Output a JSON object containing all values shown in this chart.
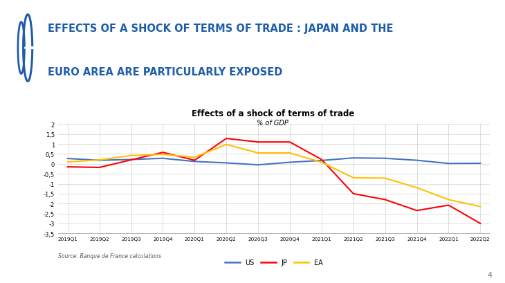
{
  "title": "Effects of a shock of terms of trade",
  "subtitle": "% of GDP",
  "header_line1": "EFFECTS OF A SHOCK OF TERMS OF TRADE : JAPAN AND THE",
  "header_line2": "EURO AREA ARE PARTICULARLY EXPOSED",
  "source": "Source: Banque de France calculations",
  "x_labels": [
    "2019Q1",
    "2019Q2",
    "2019Q3",
    "2019Q4",
    "2020Q1",
    "2020Q2",
    "2020Q3",
    "2020Q4",
    "2021Q1",
    "2021Q2",
    "2021Q3",
    "2021Q4",
    "2022Q1",
    "2022Q2"
  ],
  "US": [
    0.27,
    0.18,
    0.22,
    0.28,
    0.12,
    0.05,
    -0.05,
    0.08,
    0.17,
    0.3,
    0.28,
    0.18,
    0.02,
    0.03
  ],
  "JP": [
    -0.15,
    -0.18,
    0.2,
    0.58,
    0.18,
    1.28,
    1.1,
    1.1,
    0.22,
    -1.5,
    -1.8,
    -2.35,
    -2.08,
    -3.0
  ],
  "EA": [
    0.1,
    0.2,
    0.42,
    0.48,
    0.33,
    0.98,
    0.55,
    0.55,
    0.08,
    -0.7,
    -0.72,
    -1.2,
    -1.8,
    -2.15
  ],
  "colors": {
    "US": "#4472C4",
    "JP": "#FF0000",
    "EA": "#FFC000"
  },
  "ylim": [
    -3.5,
    2
  ],
  "yticks": [
    -3.5,
    -3,
    -2.5,
    -2,
    -1.5,
    -1,
    -0.5,
    0,
    0.5,
    1,
    1.5,
    2
  ],
  "ytick_labels": [
    "-3,5",
    "-3",
    "-2,5",
    "-2",
    "-1,5",
    "-1",
    "-0,5",
    "0",
    "0,5",
    "1",
    "1,5",
    "2"
  ],
  "header_color": "#1F5DAA",
  "background_color": "#FFFFFF",
  "plot_bg_color": "#FFFFFF",
  "grid_color": "#CCCCCC",
  "page_number": "4"
}
